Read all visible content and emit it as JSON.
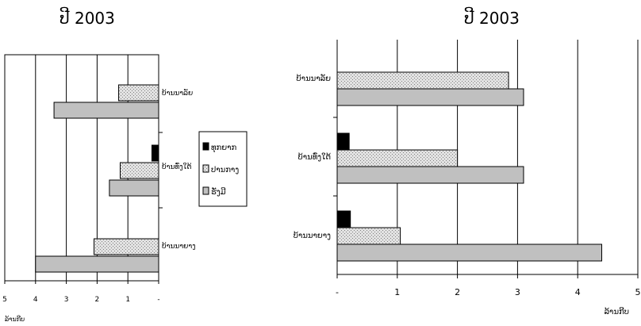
{
  "chart_data": [
    {
      "type": "bar",
      "orientation": "horizontal",
      "x_direction": "reversed",
      "title": "ປີ 2003",
      "categories": [
        "ບ້ານນາລັຍ",
        "ບ້ານທົ່ງໃຕ້",
        "ບ້ານນາຍາງ"
      ],
      "series": [
        {
          "name": "ທຸກຍາກ",
          "color": "#000000",
          "pattern": "solid",
          "values": [
            0,
            0.22,
            0
          ]
        },
        {
          "name": "ປານກາງ",
          "color": "#d4d4d4",
          "pattern": "dots",
          "values": [
            1.3,
            1.25,
            2.1
          ]
        },
        {
          "name": "ຮັ່ງມີ",
          "color": "#c0c0c0",
          "pattern": "solid",
          "values": [
            3.4,
            1.6,
            4.0
          ]
        }
      ],
      "x_ticks": [
        "5",
        "4",
        "3",
        "2",
        "1",
        "-"
      ],
      "xlabel": "ລ້ານກີບ",
      "xlim": [
        0,
        5
      ],
      "grid": true,
      "legend": "right"
    },
    {
      "type": "bar",
      "orientation": "horizontal",
      "title": "ປີ 2003",
      "categories": [
        "ບ້ານນາລັຍ",
        "ບ້ານທົ່ງໃຕ້",
        "ບ້ານນາຍາງ"
      ],
      "series": [
        {
          "name": "ທຸກຍາກ",
          "color": "#000000",
          "pattern": "solid",
          "values": [
            0,
            0.2,
            0.22
          ]
        },
        {
          "name": "ປານກາງ",
          "color": "#d4d4d4",
          "pattern": "dots",
          "values": [
            2.85,
            2.0,
            1.05
          ]
        },
        {
          "name": "ຮັ່ງມີ",
          "color": "#c0c0c0",
          "pattern": "solid",
          "values": [
            3.1,
            3.1,
            4.4
          ]
        }
      ],
      "x_ticks": [
        "-",
        "1",
        "2",
        "3",
        "4",
        "5"
      ],
      "xlabel": "ລ້ານກີບ",
      "xlim": [
        0,
        5
      ],
      "grid": true,
      "legend": "none"
    }
  ]
}
